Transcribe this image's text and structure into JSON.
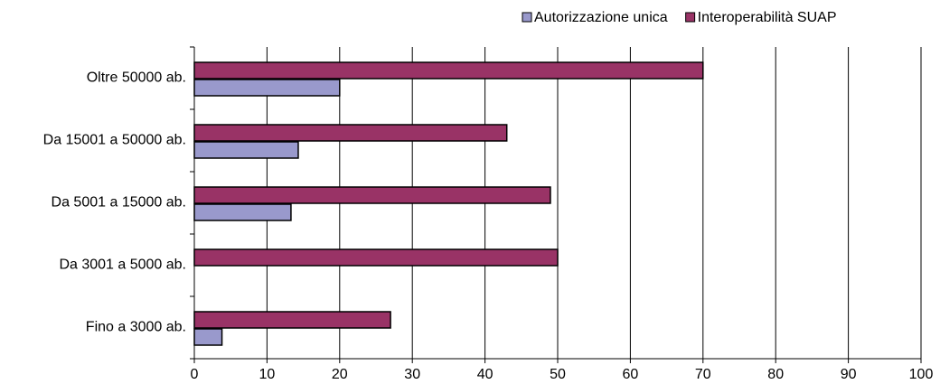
{
  "chart_data": {
    "type": "bar",
    "orientation": "horizontal",
    "categories": [
      "Oltre 50000 ab.",
      "Da 15001 a 50000 ab.",
      "Da 5001 a 15000 ab.",
      "Da 3001 a 5000 ab.",
      "Fino a 3000 ab."
    ],
    "series": [
      {
        "name": "Autorizzazione unica",
        "color": "#9999cc",
        "values": [
          20,
          14.3,
          13.3,
          0,
          3.8
        ]
      },
      {
        "name": "Interoperabilità SUAP",
        "color": "#993366",
        "values": [
          70,
          43,
          49,
          50,
          27
        ]
      }
    ],
    "xlim": [
      0,
      100
    ],
    "xticks": [
      0,
      10,
      20,
      30,
      40,
      50,
      60,
      70,
      80,
      90,
      100
    ],
    "grid": true,
    "legend": "top-right"
  }
}
